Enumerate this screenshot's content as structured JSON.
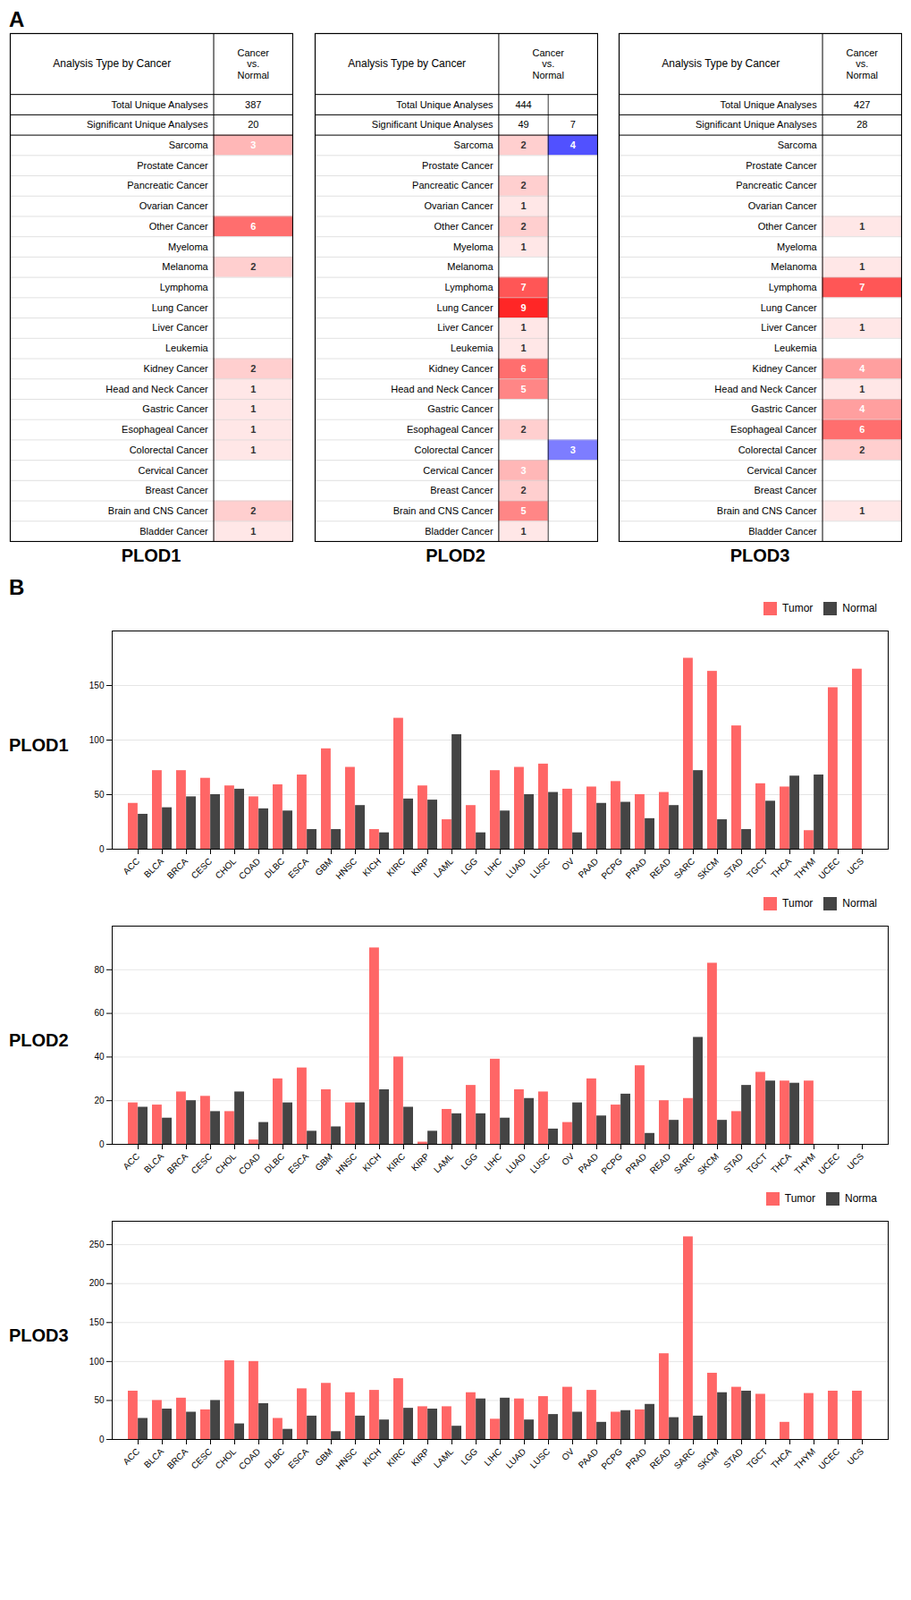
{
  "panel_labels": [
    "A",
    "B"
  ],
  "chart_data": [
    {
      "type": "table",
      "title": "PLOD1",
      "header": "Analysis Type by Cancer",
      "column_header": "Cancer\nvs.\nNormal",
      "categories": [
        "Bladder Cancer",
        "Brain and CNS Cancer",
        "Breast Cancer",
        "Cervical Cancer",
        "Colorectal Cancer",
        "Esophageal Cancer",
        "Gastric Cancer",
        "Head and Neck Cancer",
        "Kidney Cancer",
        "Leukemia",
        "Liver Cancer",
        "Lung Cancer",
        "Lymphoma",
        "Melanoma",
        "Myeloma",
        "Other Cancer",
        "Ovarian Cancer",
        "Pancreatic Cancer",
        "Prostate Cancer",
        "Sarcoma"
      ],
      "series": [
        {
          "color": "#FF2626",
          "color_domain": [
            0,
            9
          ],
          "values": [
            1,
            2,
            0,
            0,
            1,
            1,
            1,
            1,
            2,
            0,
            0,
            0,
            0,
            2,
            0,
            6,
            0,
            0,
            0,
            3
          ]
        }
      ],
      "summary_rows": [
        {
          "label": "Significant Unique Analyses",
          "values": [
            20
          ]
        },
        {
          "label": "Total Unique Analyses",
          "values": [
            387
          ]
        }
      ],
      "data_labels": true
    },
    {
      "type": "table",
      "title": "PLOD2",
      "header": "Analysis Type by Cancer",
      "column_header": "Cancer\nvs.\nNormal",
      "categories": [
        "Bladder Cancer",
        "Brain and CNS Cancer",
        "Breast Cancer",
        "Cervical Cancer",
        "Colorectal Cancer",
        "Esophageal Cancer",
        "Gastric Cancer",
        "Head and Neck Cancer",
        "Kidney Cancer",
        "Leukemia",
        "Liver Cancer",
        "Lung Cancer",
        "Lymphoma",
        "Melanoma",
        "Myeloma",
        "Other Cancer",
        "Ovarian Cancer",
        "Pancreatic Cancer",
        "Prostate Cancer",
        "Sarcoma"
      ],
      "series": [
        {
          "color": "#FF2626",
          "color_domain": [
            0,
            9
          ],
          "values": [
            1,
            5,
            2,
            3,
            0,
            2,
            0,
            5,
            6,
            1,
            1,
            9,
            7,
            0,
            1,
            2,
            1,
            2,
            0,
            2
          ]
        },
        {
          "color": "#2626FF",
          "color_domain": [
            0,
            5
          ],
          "values": [
            0,
            0,
            0,
            0,
            3,
            0,
            0,
            0,
            0,
            0,
            0,
            0,
            0,
            0,
            0,
            0,
            0,
            0,
            0,
            4
          ]
        }
      ],
      "summary_rows": [
        {
          "label": "Significant Unique Analyses",
          "values": [
            49,
            7
          ]
        },
        {
          "label": "Total Unique Analyses",
          "values": [
            444
          ]
        }
      ],
      "data_labels": true
    },
    {
      "type": "table",
      "title": "PLOD3",
      "header": "Analysis Type by Cancer",
      "column_header": "Cancer\nvs.\nNormal",
      "categories": [
        "Bladder Cancer",
        "Brain and CNS Cancer",
        "Breast Cancer",
        "Cervical Cancer",
        "Colorectal Cancer",
        "Esophageal Cancer",
        "Gastric Cancer",
        "Head and Neck Cancer",
        "Kidney Cancer",
        "Leukemia",
        "Liver Cancer",
        "Lung Cancer",
        "Lymphoma",
        "Melanoma",
        "Myeloma",
        "Other Cancer",
        "Ovarian Cancer",
        "Pancreatic Cancer",
        "Prostate Cancer",
        "Sarcoma"
      ],
      "series": [
        {
          "color": "#FF2626",
          "color_domain": [
            0,
            9
          ],
          "values": [
            0,
            1,
            0,
            0,
            2,
            6,
            4,
            1,
            4,
            0,
            1,
            0,
            7,
            1,
            0,
            1,
            0,
            0,
            0,
            0
          ]
        }
      ],
      "summary_rows": [
        {
          "label": "Significant Unique Analyses",
          "values": [
            28
          ]
        },
        {
          "label": "Total Unique Analyses",
          "values": [
            427
          ]
        }
      ],
      "data_labels": true
    },
    {
      "type": "bar",
      "ylabel": "PLOD1",
      "categories": [
        "ACC",
        "BLCA",
        "BRCA",
        "CESC",
        "CHOL",
        "COAD",
        "DLBC",
        "ESCA",
        "GBM",
        "HNSC",
        "KICH",
        "KIRC",
        "KIRP",
        "LAML",
        "LGG",
        "LIHC",
        "LUAD",
        "LUSC",
        "OV",
        "PAAD",
        "PCPG",
        "PRAD",
        "READ",
        "SARC",
        "SKCM",
        "STAD",
        "TGCT",
        "THCA",
        "THYM",
        "UCEC",
        "UCS"
      ],
      "series": [
        {
          "name": "Tumor",
          "color": "#FF6666",
          "values": [
            42,
            72,
            72,
            65,
            58,
            48,
            59,
            68,
            92,
            75,
            18,
            120,
            58,
            27,
            40,
            72,
            75,
            78,
            55,
            57,
            62,
            50,
            52,
            175,
            163,
            113,
            60,
            57,
            17,
            148,
            165
          ]
        },
        {
          "name": "Normal",
          "color": "#444444",
          "values": [
            32,
            38,
            48,
            50,
            55,
            37,
            35,
            18,
            18,
            40,
            15,
            46,
            45,
            105,
            15,
            35,
            50,
            52,
            15,
            42,
            43,
            28,
            40,
            72,
            27,
            18,
            44,
            67,
            68,
            null,
            null
          ]
        }
      ],
      "ylim": [
        0,
        200
      ],
      "yticks": [
        0,
        50,
        100,
        150
      ],
      "grid": true,
      "legend": "upper right"
    },
    {
      "type": "bar",
      "ylabel": "PLOD2",
      "categories": [
        "ACC",
        "BLCA",
        "BRCA",
        "CESC",
        "CHOL",
        "COAD",
        "DLBC",
        "ESCA",
        "GBM",
        "HNSC",
        "KICH",
        "KIRC",
        "KIRP",
        "LAML",
        "LGG",
        "LIHC",
        "LUAD",
        "LUSC",
        "OV",
        "PAAD",
        "PCPG",
        "PRAD",
        "READ",
        "SARC",
        "SKCM",
        "STAD",
        "TGCT",
        "THCA",
        "THYM",
        "UCEC",
        "UCS"
      ],
      "series": [
        {
          "name": "Tumor",
          "color": "#FF6666",
          "values": [
            19,
            18,
            24,
            22,
            15,
            2,
            30,
            35,
            25,
            19,
            90,
            40,
            1,
            16,
            27,
            39,
            25,
            24,
            10,
            30,
            18,
            36,
            20,
            21,
            83,
            15,
            33,
            29,
            29,
            null,
            null
          ]
        },
        {
          "name": "Normal",
          "color": "#444444",
          "values": [
            17,
            12,
            20,
            15,
            24,
            10,
            19,
            6,
            8,
            19,
            25,
            17,
            6,
            14,
            14,
            12,
            21,
            7,
            19,
            13,
            23,
            5,
            11,
            49,
            11,
            27,
            29,
            28,
            null,
            null,
            null
          ]
        }
      ],
      "ylim": [
        0,
        100
      ],
      "yticks": [
        0,
        20,
        40,
        60,
        80
      ],
      "grid": true,
      "legend": "upper right"
    },
    {
      "type": "bar",
      "ylabel": "PLOD3",
      "categories": [
        "ACC",
        "BLCA",
        "BRCA",
        "CESC",
        "CHOL",
        "COAD",
        "DLBC",
        "ESCA",
        "GBM",
        "HNSC",
        "KICH",
        "KIRC",
        "KIRP",
        "LAML",
        "LGG",
        "LIHC",
        "LUAD",
        "LUSC",
        "OV",
        "PAAD",
        "PCPG",
        "PRAD",
        "READ",
        "SARC",
        "SKCM",
        "STAD",
        "TGCT",
        "THCA",
        "THYM",
        "UCEC",
        "UCS"
      ],
      "series": [
        {
          "name": "Tumor",
          "color": "#FF6666",
          "values": [
            62,
            50,
            53,
            38,
            101,
            100,
            27,
            65,
            72,
            60,
            63,
            78,
            42,
            42,
            60,
            26,
            52,
            55,
            67,
            63,
            35,
            38,
            110,
            260,
            85,
            67,
            58,
            22,
            59,
            62,
            62
          ]
        },
        {
          "name": "Norma",
          "color": "#444444",
          "values": [
            27,
            39,
            35,
            50,
            20,
            46,
            13,
            30,
            10,
            30,
            25,
            40,
            39,
            17,
            52,
            53,
            25,
            32,
            35,
            22,
            37,
            45,
            28,
            30,
            60,
            62,
            null,
            null,
            null,
            null,
            null
          ]
        }
      ],
      "ylim": [
        0,
        280
      ],
      "yticks": [
        0,
        50,
        100,
        150,
        200,
        250
      ],
      "grid": true,
      "legend": "upper right"
    }
  ]
}
